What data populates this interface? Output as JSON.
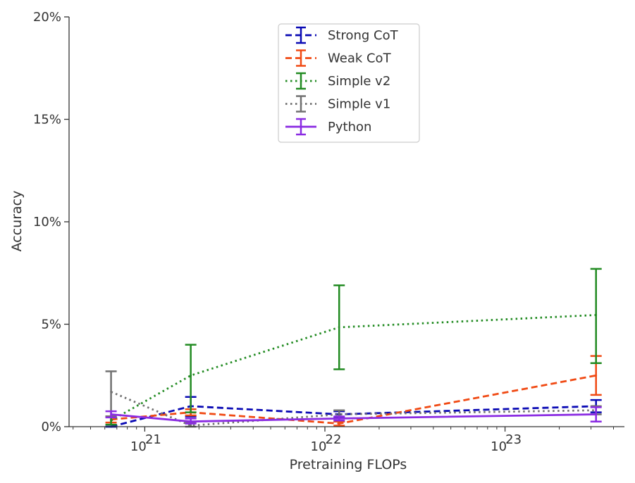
{
  "chart_data": {
    "type": "line",
    "title": "",
    "xlabel": "Pretraining FLOPs",
    "ylabel": "Accuracy",
    "x_scale": "log",
    "y_scale": "linear",
    "xlim": [
      3.8e+20,
      4.6e+23
    ],
    "ylim": [
      0,
      20
    ],
    "x_ticks": [
      {
        "value": 1e+21,
        "base": "10",
        "exp": "21"
      },
      {
        "value": 1e+22,
        "base": "10",
        "exp": "22"
      },
      {
        "value": 1e+23,
        "base": "10",
        "exp": "23"
      }
    ],
    "y_ticks": [
      {
        "value": 0,
        "label": "0%"
      },
      {
        "value": 5,
        "label": "5%"
      },
      {
        "value": 10,
        "label": "10%"
      },
      {
        "value": 15,
        "label": "15%"
      },
      {
        "value": 20,
        "label": "20%"
      }
    ],
    "x": [
      6.5e+20,
      1.8e+21,
      1.2e+22,
      3.2e+23
    ],
    "grid": false,
    "legend_position": "upper-center",
    "series": [
      {
        "name": "Strong CoT",
        "color": "#0a0ab4",
        "dash": "dashed",
        "values": [
          0.0,
          1.0,
          0.6,
          1.0
        ],
        "err_low": [
          0.0,
          0.5,
          0.45,
          0.7
        ],
        "err_high": [
          0.0,
          1.45,
          0.75,
          1.3
        ]
      },
      {
        "name": "Weak CoT",
        "color": "#f04a14",
        "dash": "dashed",
        "values": [
          0.35,
          0.7,
          0.15,
          2.5
        ],
        "err_low": [
          0.2,
          0.55,
          0.05,
          1.55
        ],
        "err_high": [
          0.5,
          0.85,
          0.25,
          3.45
        ]
      },
      {
        "name": "Simple v2",
        "color": "#228b22",
        "dash": "dotted",
        "values": [
          0.3,
          2.5,
          4.85,
          5.45
        ],
        "err_low": [
          0.1,
          0.7,
          2.8,
          3.1
        ],
        "err_high": [
          0.5,
          4.0,
          6.9,
          7.7
        ]
      },
      {
        "name": "Simple v1",
        "color": "#707070",
        "dash": "dotted",
        "values": [
          1.7,
          0.05,
          0.6,
          0.8
        ],
        "err_low": [
          0.5,
          0.0,
          0.4,
          0.6
        ],
        "err_high": [
          2.7,
          0.2,
          0.8,
          1.0
        ]
      },
      {
        "name": "Python",
        "color": "#8a2be2",
        "dash": "solid",
        "values": [
          0.6,
          0.25,
          0.4,
          0.6
        ],
        "err_low": [
          0.45,
          0.15,
          0.3,
          0.25
        ],
        "err_high": [
          0.75,
          0.4,
          0.5,
          0.95
        ]
      }
    ]
  }
}
